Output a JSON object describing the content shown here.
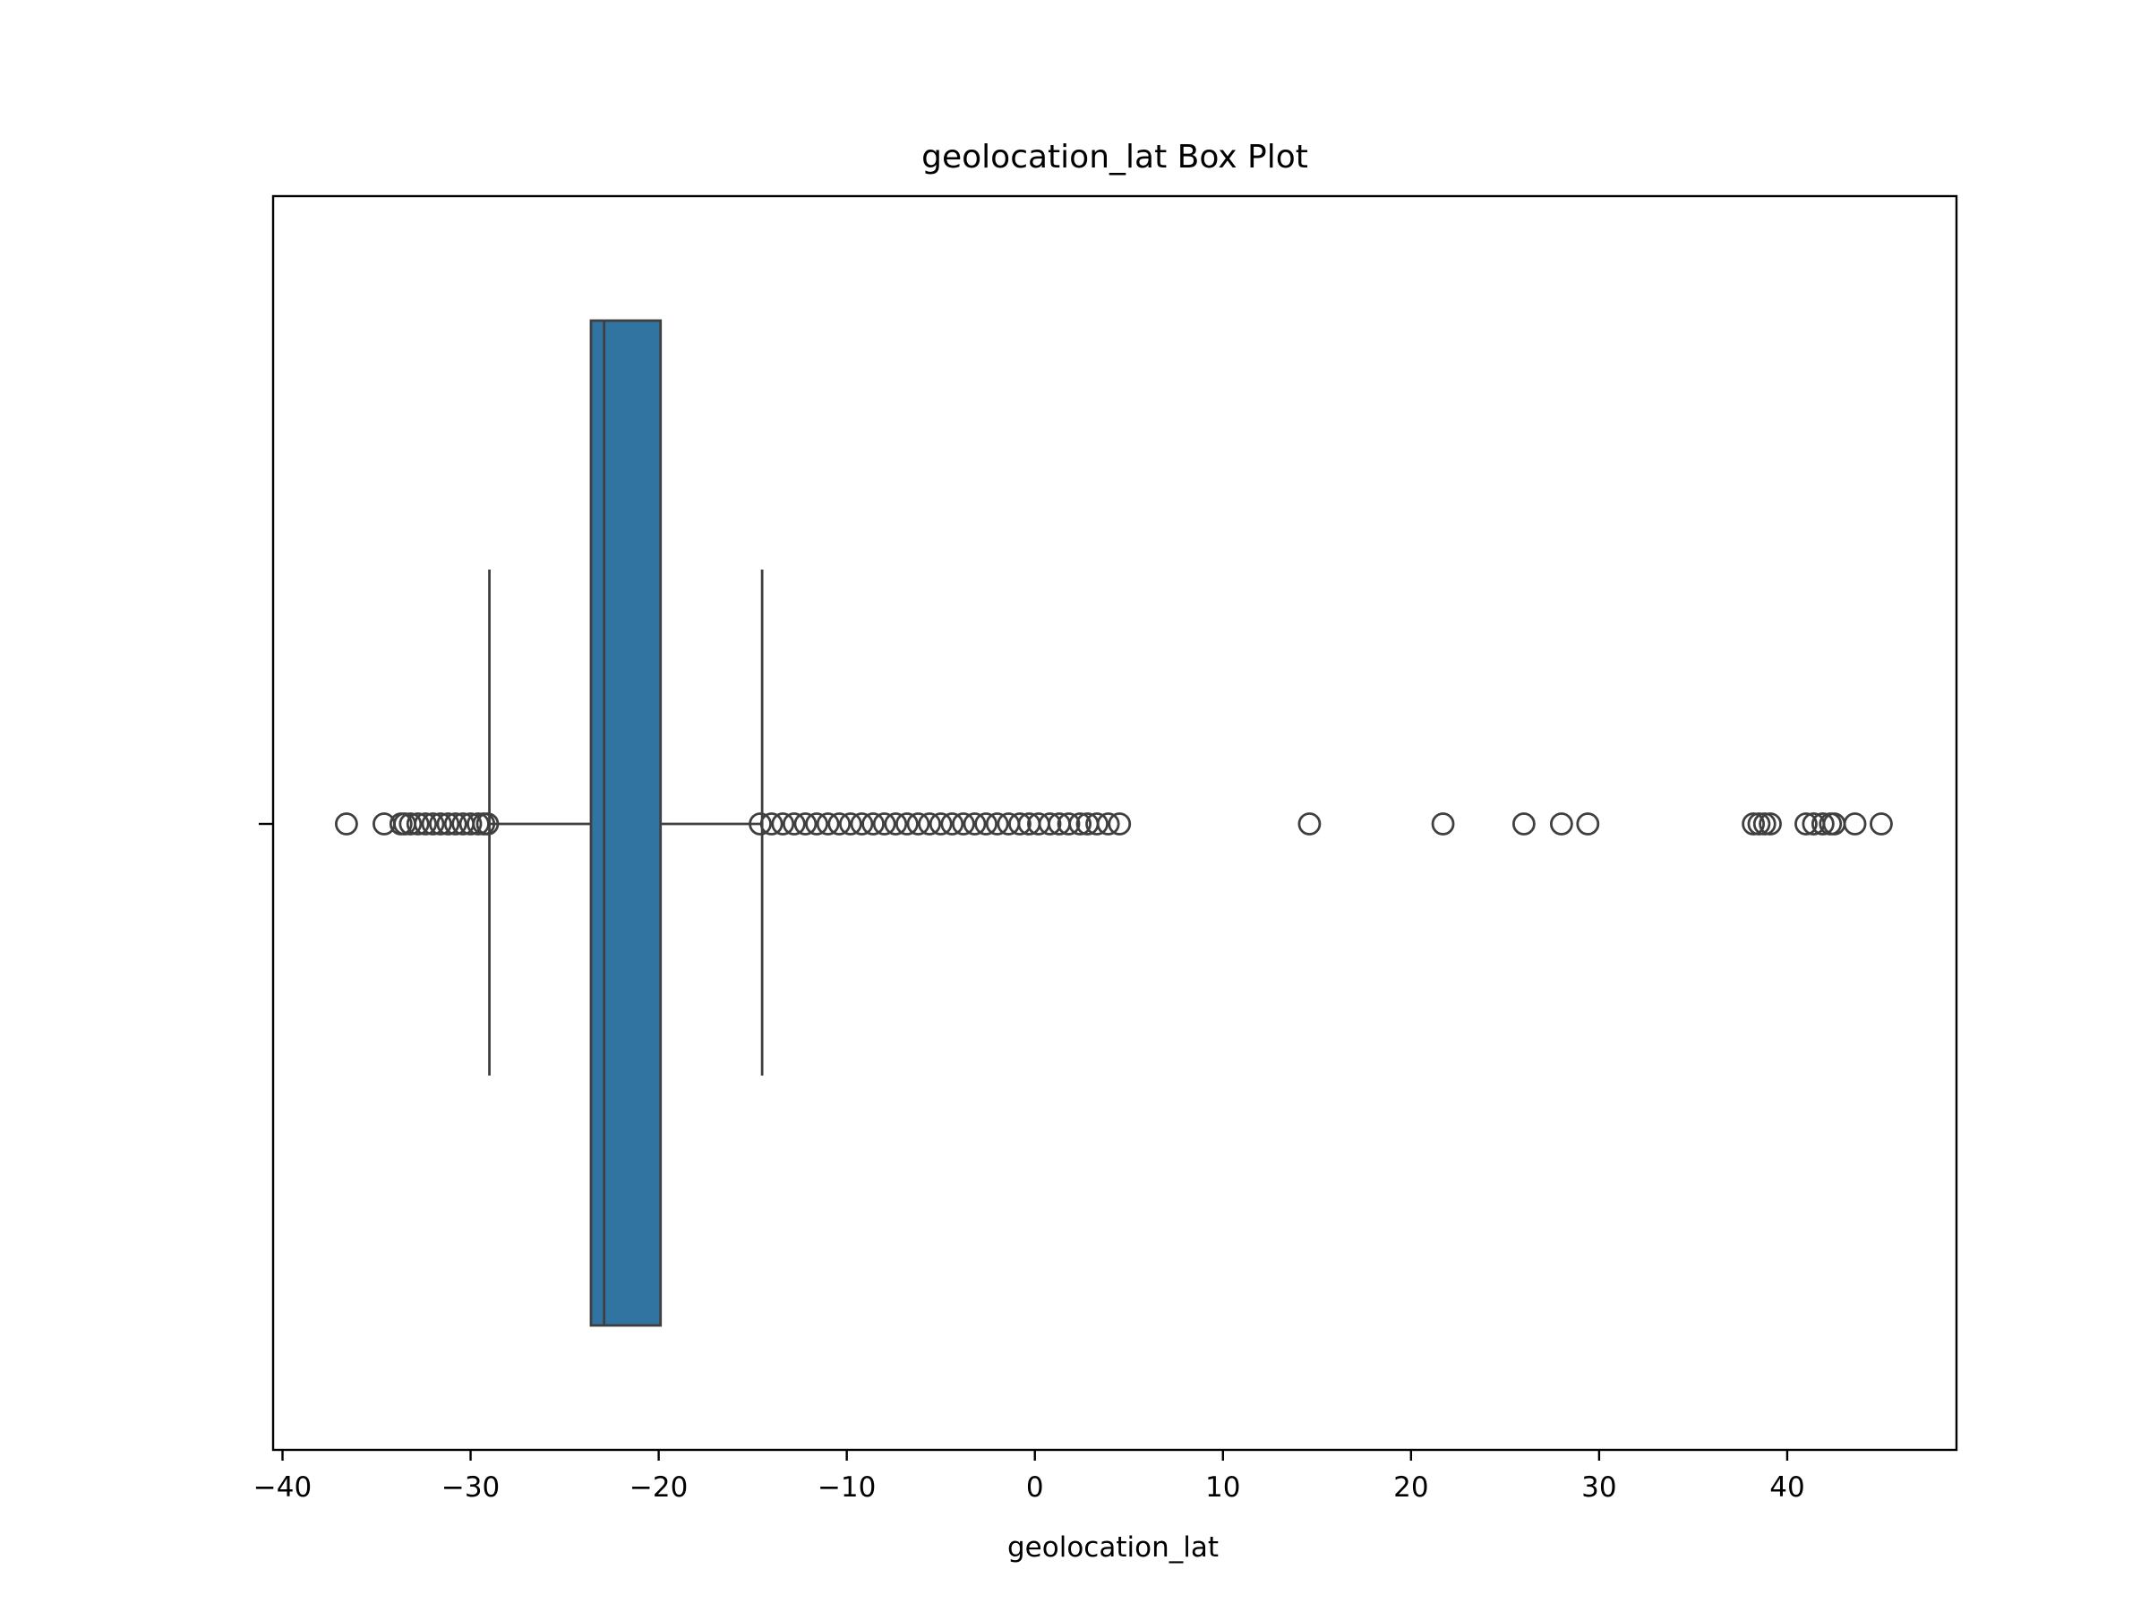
{
  "chart_data": {
    "type": "box",
    "title": "geolocation_lat Box Plot",
    "xlabel": "geolocation_lat",
    "ylabel": "",
    "orientation": "horizontal",
    "xlim": [
      -40.5,
      49.0
    ],
    "xticks": [
      -40,
      -30,
      -20,
      -10,
      0,
      10,
      20,
      30,
      40
    ],
    "xtick_labels": [
      "−40",
      "−30",
      "−20",
      "−10",
      "0",
      "10",
      "20",
      "30",
      "40"
    ],
    "grid": false,
    "box": {
      "whisker_low": -29.0,
      "q1": -23.6,
      "median": -22.9,
      "q3": -19.9,
      "whisker_high": -14.5
    },
    "outliers": [
      -36.6,
      -34.6,
      -33.7,
      -33.5,
      -33.2,
      -32.8,
      -32.4,
      -32.0,
      -31.6,
      -31.2,
      -30.8,
      -30.4,
      -30.0,
      -29.6,
      -29.3,
      -29.1,
      -14.6,
      -14.0,
      -13.4,
      -12.8,
      -12.2,
      -11.6,
      -11.0,
      -10.4,
      -9.8,
      -9.2,
      -8.6,
      -8.0,
      -7.4,
      -6.8,
      -6.2,
      -5.6,
      -5.0,
      -4.4,
      -3.8,
      -3.2,
      -2.6,
      -2.0,
      -1.4,
      -0.8,
      -0.3,
      0.2,
      0.8,
      1.3,
      1.8,
      2.4,
      2.8,
      3.3,
      3.9,
      4.5,
      14.6,
      21.7,
      26.0,
      28.0,
      29.4,
      38.2,
      38.5,
      38.8,
      39.1,
      41.0,
      41.4,
      41.9,
      42.3,
      42.5,
      43.6,
      45.0
    ],
    "colors": {
      "box_fill": "#3274a1",
      "line": "#3f3f3f",
      "axes": "#000000"
    }
  }
}
